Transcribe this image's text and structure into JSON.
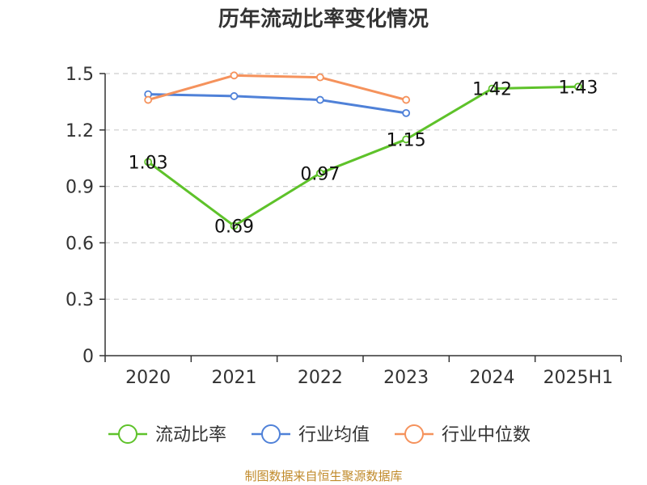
{
  "chart_data": {
    "type": "line",
    "title": "历年流动比率变化情况",
    "categories": [
      "2020",
      "2021",
      "2022",
      "2023",
      "2024",
      "2025H1"
    ],
    "ylim": [
      0,
      1.5
    ],
    "yticks": [
      "0",
      "0.3",
      "0.6",
      "0.9",
      "1.2",
      "1.5"
    ],
    "grid": true,
    "legend_position": "bottom",
    "series": [
      {
        "name": "流动比率",
        "color": "#5ec22a",
        "values": [
          1.03,
          0.69,
          0.97,
          1.15,
          1.42,
          1.43
        ],
        "labels": [
          "1.03",
          "0.69",
          "0.97",
          "1.15",
          "1.42",
          "1.43"
        ]
      },
      {
        "name": "行业均值",
        "color": "#4f81d8",
        "values": [
          1.39,
          1.38,
          1.36,
          1.29,
          null,
          null
        ]
      },
      {
        "name": "行业中位数",
        "color": "#f5925c",
        "values": [
          1.36,
          1.49,
          1.48,
          1.36,
          null,
          null
        ]
      }
    ]
  },
  "source": "制图数据来自恒生聚源数据库"
}
